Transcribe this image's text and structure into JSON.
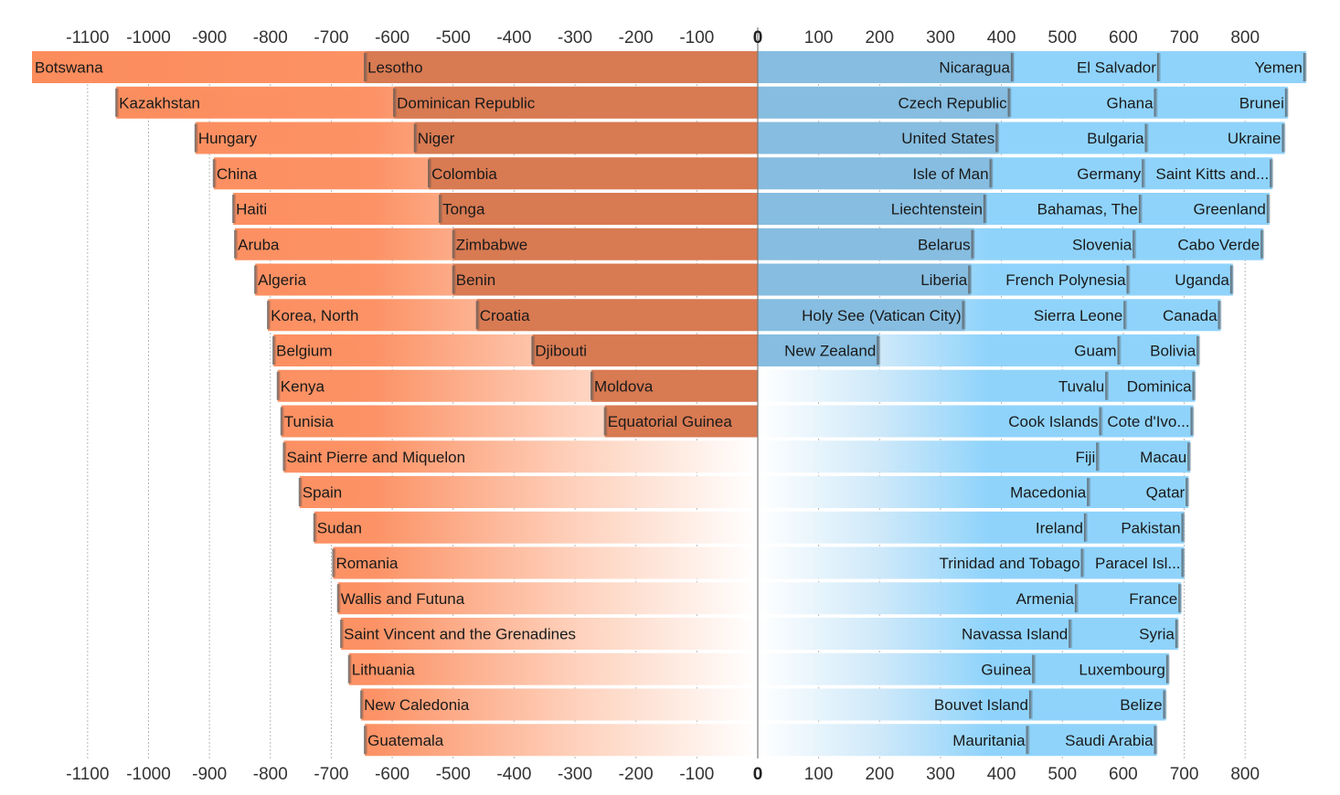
{
  "chart_data": {
    "type": "bar",
    "subtype": "diverging-stacked-bar",
    "title": "",
    "xlabel": "",
    "ylabel": "",
    "xlim": [
      -1100,
      800
    ],
    "ticks": [
      -1100,
      -1000,
      -900,
      -800,
      -700,
      -600,
      -500,
      -400,
      -300,
      -200,
      -100,
      0,
      100,
      200,
      300,
      400,
      500,
      600,
      700,
      800
    ],
    "colors": {
      "negative_outer": "#fb8c5c",
      "negative_inner": "#d87a52",
      "positive_inner": "#86bde0",
      "positive_outer": "#8fd3fb"
    },
    "rows": [
      {
        "neg": [
          {
            "label": "Botswana",
            "start": -1193
          },
          {
            "label": "Lesotho",
            "start": -645
          }
        ],
        "pos": [
          {
            "label": "Nicaragua",
            "end": 420
          },
          {
            "label": "El Salvador",
            "end": 660
          },
          {
            "label": "Yemen",
            "end": 900
          }
        ]
      },
      {
        "neg": [
          {
            "label": "Kazakhstan",
            "start": -1053
          },
          {
            "label": "Dominican Republic",
            "start": -597
          }
        ],
        "pos": [
          {
            "label": "Czech Republic",
            "end": 415
          },
          {
            "label": "Ghana",
            "end": 655
          },
          {
            "label": "Brunei",
            "end": 870
          }
        ]
      },
      {
        "neg": [
          {
            "label": "Hungary",
            "start": -923
          },
          {
            "label": "Niger",
            "start": -563
          }
        ],
        "pos": [
          {
            "label": "United States",
            "end": 395
          },
          {
            "label": "Bulgaria",
            "end": 640
          },
          {
            "label": "Ukraine",
            "end": 865
          }
        ]
      },
      {
        "neg": [
          {
            "label": "China",
            "start": -893
          },
          {
            "label": "Colombia",
            "start": -540
          }
        ],
        "pos": [
          {
            "label": "Isle of Man",
            "end": 385
          },
          {
            "label": "Germany",
            "end": 635
          },
          {
            "label": "Saint Kitts and...",
            "end": 845
          }
        ]
      },
      {
        "neg": [
          {
            "label": "Haiti",
            "start": -861
          },
          {
            "label": "Tonga",
            "start": -522
          }
        ],
        "pos": [
          {
            "label": "Liechtenstein",
            "end": 375
          },
          {
            "label": "Bahamas, The",
            "end": 630
          },
          {
            "label": "Greenland",
            "end": 840
          }
        ]
      },
      {
        "neg": [
          {
            "label": "Aruba",
            "start": -858
          },
          {
            "label": "Zimbabwe",
            "start": -500
          }
        ],
        "pos": [
          {
            "label": "Belarus",
            "end": 355
          },
          {
            "label": "Slovenia",
            "end": 620
          },
          {
            "label": "Cabo Verde",
            "end": 830
          }
        ]
      },
      {
        "neg": [
          {
            "label": "Algeria",
            "start": -825
          },
          {
            "label": "Benin",
            "start": -500
          }
        ],
        "pos": [
          {
            "label": "Liberia",
            "end": 350
          },
          {
            "label": "French Polynesia",
            "end": 610
          },
          {
            "label": "Uganda",
            "end": 780
          }
        ]
      },
      {
        "neg": [
          {
            "label": "Korea, North",
            "start": -804
          },
          {
            "label": "Croatia",
            "start": -461
          }
        ],
        "pos": [
          {
            "label": "Holy See (Vatican City)",
            "end": 340
          },
          {
            "label": "Sierra Leone",
            "end": 605
          },
          {
            "label": "Canada",
            "end": 760
          }
        ]
      },
      {
        "neg": [
          {
            "label": "Belgium",
            "start": -795
          },
          {
            "label": "Djibouti",
            "start": -370
          }
        ],
        "pos": [
          {
            "label": "New Zealand",
            "end": 200
          },
          {
            "label": "Guam",
            "end": 595
          },
          {
            "label": "Bolivia",
            "end": 725
          }
        ]
      },
      {
        "neg": [
          {
            "label": "Kenya",
            "start": -788
          },
          {
            "label": "Moldova",
            "start": -273
          }
        ],
        "pos": [
          {
            "label": "Tuvalu",
            "end": 575
          },
          {
            "label": "Dominica",
            "end": 718
          }
        ]
      },
      {
        "neg": [
          {
            "label": "Tunisia",
            "start": -782
          },
          {
            "label": "Equatorial Guinea",
            "start": -251
          }
        ],
        "pos": [
          {
            "label": "Cook Islands",
            "end": 565
          },
          {
            "label": "Cote d'Ivo...",
            "end": 715
          }
        ]
      },
      {
        "neg": [
          {
            "label": "Saint Pierre and Miquelon",
            "start": -778
          }
        ],
        "pos": [
          {
            "label": "Fiji",
            "end": 560
          },
          {
            "label": "Macau",
            "end": 710
          }
        ]
      },
      {
        "neg": [
          {
            "label": "Spain",
            "start": -752
          }
        ],
        "pos": [
          {
            "label": "Macedonia",
            "end": 545
          },
          {
            "label": "Qatar",
            "end": 707
          }
        ]
      },
      {
        "neg": [
          {
            "label": "Sudan",
            "start": -728
          }
        ],
        "pos": [
          {
            "label": "Ireland",
            "end": 540
          },
          {
            "label": "Pakistan",
            "end": 700
          }
        ]
      },
      {
        "neg": [
          {
            "label": "Romania",
            "start": -697
          }
        ],
        "pos": [
          {
            "label": "Trinidad and Tobago",
            "end": 535
          },
          {
            "label": "Paracel Isl...",
            "end": 700
          }
        ]
      },
      {
        "neg": [
          {
            "label": "Wallis and Futuna",
            "start": -689
          }
        ],
        "pos": [
          {
            "label": "Armenia",
            "end": 525
          },
          {
            "label": "France",
            "end": 695
          }
        ]
      },
      {
        "neg": [
          {
            "label": "Saint Vincent and the Grenadines",
            "start": -684
          }
        ],
        "pos": [
          {
            "label": "Navassa Island",
            "end": 515
          },
          {
            "label": "Syria",
            "end": 690
          }
        ]
      },
      {
        "neg": [
          {
            "label": "Lithuania",
            "start": -671
          }
        ],
        "pos": [
          {
            "label": "Guinea",
            "end": 455
          },
          {
            "label": "Luxembourg",
            "end": 675
          }
        ]
      },
      {
        "neg": [
          {
            "label": "New Caledonia",
            "start": -651
          }
        ],
        "pos": [
          {
            "label": "Bouvet Island",
            "end": 450
          },
          {
            "label": "Belize",
            "end": 670
          }
        ]
      },
      {
        "neg": [
          {
            "label": "Guatemala",
            "start": -645
          }
        ],
        "pos": [
          {
            "label": "Mauritania",
            "end": 445
          },
          {
            "label": "Saudi Arabia",
            "end": 655
          }
        ]
      }
    ]
  }
}
